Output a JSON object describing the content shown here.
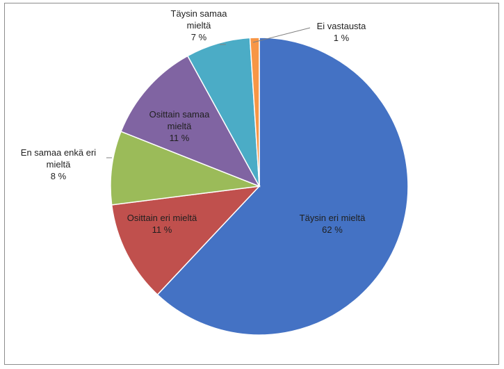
{
  "chart_data": {
    "type": "pie",
    "title": "",
    "slices": [
      {
        "name": "Täysin eri mieltä",
        "value": 62,
        "value_label": "62 %",
        "color": "#4472c4"
      },
      {
        "name": "Osittain eri mieltä",
        "value": 11,
        "value_label": "11 %",
        "color": "#c0504d"
      },
      {
        "name": "En samaa enkä eri mieltä",
        "value": 8,
        "value_label": "8 %",
        "color": "#9bbb59"
      },
      {
        "name": "Osittain samaa mieltä",
        "value": 11,
        "value_label": "11 %",
        "color": "#8064a2"
      },
      {
        "name": "Täysin samaa mieltä",
        "value": 7,
        "value_label": "7 %",
        "color": "#4bacc6"
      },
      {
        "name": "Ei vastausta",
        "value": 1,
        "value_label": "1 %",
        "color": "#f79646"
      }
    ],
    "legend": "none",
    "data_labels": "category and percentage"
  }
}
